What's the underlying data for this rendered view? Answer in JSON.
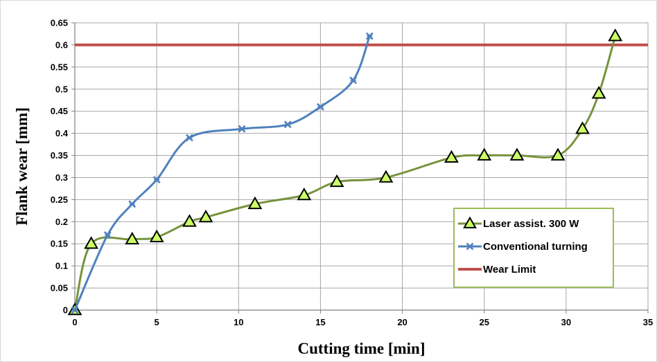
{
  "chart_data": {
    "type": "line",
    "title": "",
    "xlabel": "Cutting time [min]",
    "ylabel": "Flank wear  [mm]",
    "xlim": [
      0,
      35
    ],
    "ylim": [
      0,
      0.65
    ],
    "xticks": [
      0,
      5,
      10,
      15,
      20,
      25,
      30,
      35
    ],
    "yticks": [
      0,
      0.05,
      0.1,
      0.15,
      0.2,
      0.25,
      0.3,
      0.35,
      0.4,
      0.45,
      0.5,
      0.55,
      0.6,
      0.65
    ],
    "xtick_labels": [
      "0",
      "5",
      "10",
      "15",
      "20",
      "25",
      "30",
      "35"
    ],
    "ytick_labels": [
      "0",
      "0.05",
      "0.1",
      "0.15",
      "0.2",
      "0.25",
      "0.3",
      "0.35",
      "0.4",
      "0.45",
      "0.5",
      "0.55",
      "0.6",
      "0.65"
    ],
    "grid": true,
    "legend_position": "lower-right",
    "series": [
      {
        "name": "Laser assist. 300 W",
        "color": "#77933c",
        "marker": "triangle",
        "marker_fill": "#ccff66",
        "x": [
          0,
          1,
          3.5,
          5,
          7,
          8,
          11,
          14,
          16,
          19,
          23,
          25,
          27,
          29.5,
          31,
          32,
          33
        ],
        "y": [
          0,
          0.15,
          0.16,
          0.165,
          0.2,
          0.21,
          0.24,
          0.26,
          0.29,
          0.3,
          0.345,
          0.35,
          0.35,
          0.35,
          0.41,
          0.49,
          0.62
        ]
      },
      {
        "name": "Conventional turning",
        "color": "#4f81bd",
        "marker": "x",
        "x": [
          0,
          2,
          3.5,
          5,
          7,
          10.2,
          13,
          15,
          17,
          18
        ],
        "y": [
          0,
          0.17,
          0.24,
          0.295,
          0.39,
          0.41,
          0.42,
          0.46,
          0.52,
          0.62
        ]
      },
      {
        "name": "Wear Limit",
        "color": "#c0504d",
        "marker": "none",
        "x": [
          0,
          35
        ],
        "y": [
          0.6,
          0.6
        ]
      }
    ]
  }
}
